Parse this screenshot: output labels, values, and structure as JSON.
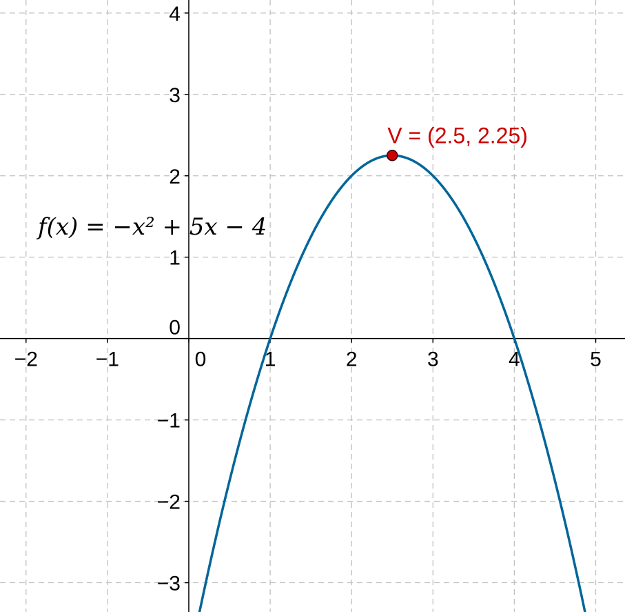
{
  "chart_data": {
    "type": "line",
    "title": "",
    "xlabel": "",
    "ylabel": "",
    "xlim": [
      -2.32,
      5.36
    ],
    "ylim": [
      -3.36,
      4.16
    ],
    "grid": true,
    "grid_style": "dashed",
    "x_ticks": [
      -2,
      -1,
      0,
      1,
      2,
      3,
      4,
      5
    ],
    "y_ticks": [
      -3,
      -2,
      -1,
      0,
      1,
      2,
      3,
      4
    ],
    "x_tick_labels": [
      "−2",
      "−1",
      "0",
      "1",
      "2",
      "3",
      "4",
      "5"
    ],
    "y_tick_labels": [
      "−3",
      "−2",
      "−1",
      "0",
      "1",
      "2",
      "3",
      "4"
    ],
    "series": [
      {
        "function": "f(x) = −x² + 5x − 4",
        "coefficients": {
          "a": -1,
          "b": 5,
          "c": -4
        },
        "color": "#00669a",
        "label": "f(x) = −x² + 5x − 4"
      }
    ],
    "points": [
      {
        "name": "V",
        "x": 2.5,
        "y": 2.25,
        "label": "V = (2.5, 2.25)",
        "color": "#cc0000"
      }
    ]
  }
}
